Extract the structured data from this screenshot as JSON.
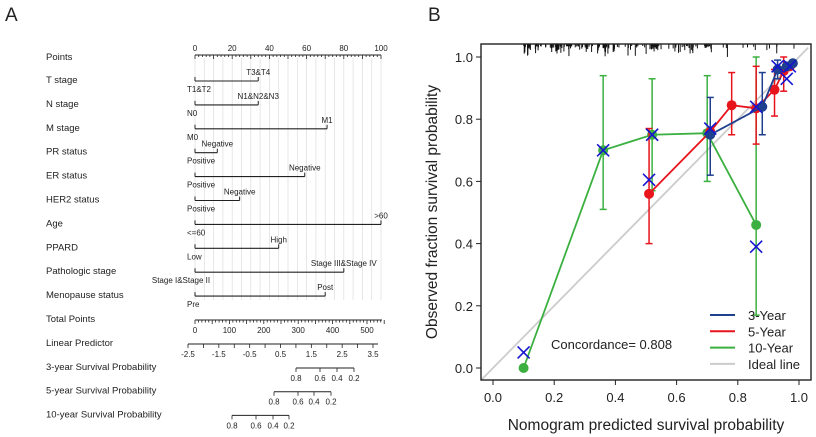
{
  "panel_a": {
    "letter": "A",
    "points_axis": {
      "label": "Points",
      "ticks": [
        "0",
        "20",
        "40",
        "60",
        "80",
        "100"
      ]
    },
    "variables": [
      {
        "label": "T stage",
        "levels": [
          {
            "label": "T1&T2",
            "points": 0,
            "pos": "below"
          },
          {
            "label": "T3&T4",
            "points": 34,
            "pos": "above"
          }
        ]
      },
      {
        "label": "N stage",
        "levels": [
          {
            "label": "N0",
            "points": 0,
            "pos": "below"
          },
          {
            "label": "N1&N2&N3",
            "points": 34,
            "pos": "above"
          }
        ]
      },
      {
        "label": "M stage",
        "levels": [
          {
            "label": "M0",
            "points": 0,
            "pos": "below"
          },
          {
            "label": "M1",
            "points": 71,
            "pos": "above"
          }
        ]
      },
      {
        "label": "PR status",
        "levels": [
          {
            "label": "Positive",
            "points": 0,
            "pos": "below"
          },
          {
            "label": "Negative",
            "points": 12,
            "pos": "above"
          }
        ]
      },
      {
        "label": "ER status",
        "levels": [
          {
            "label": "Positive",
            "points": 0,
            "pos": "below"
          },
          {
            "label": "Negative",
            "points": 59,
            "pos": "above"
          }
        ]
      },
      {
        "label": "HER2 status",
        "levels": [
          {
            "label": "Positive",
            "points": 0,
            "pos": "below"
          },
          {
            "label": "Negative",
            "points": 24,
            "pos": "above"
          }
        ]
      },
      {
        "label": "Age",
        "levels": [
          {
            "label": "<=60",
            "points": 0,
            "pos": "below"
          },
          {
            "label": ">60",
            "points": 100,
            "pos": "above"
          }
        ]
      },
      {
        "label": "PPARD",
        "levels": [
          {
            "label": "Low",
            "points": 0,
            "pos": "below"
          },
          {
            "label": "High",
            "points": 45,
            "pos": "above"
          }
        ]
      },
      {
        "label": "Pathologic stage",
        "levels": [
          {
            "label": "Stage I&Stage II",
            "points": 0,
            "pos": "below"
          },
          {
            "label": "Stage III&Stage IV",
            "points": 80,
            "pos": "above"
          }
        ]
      },
      {
        "label": "Menopause status",
        "levels": [
          {
            "label": "Pre",
            "points": 0,
            "pos": "below"
          },
          {
            "label": "Post",
            "points": 70,
            "pos": "above"
          }
        ]
      }
    ],
    "total_points": {
      "label": "Total Points",
      "ticks": [
        "0",
        "100",
        "200",
        "300",
        "400",
        "500"
      ]
    },
    "linear_predictor": {
      "label": "Linear Predictor",
      "ticks": [
        "-2.5",
        "-1.5",
        "-0.5",
        "0.5",
        "1.5",
        "2.5",
        "3.5"
      ]
    },
    "survival_scales": [
      {
        "label": "3-year Survival Probability",
        "ticks": [
          "0.8",
          "0.6",
          "0.4",
          "0.2"
        ]
      },
      {
        "label": "5-year Survival Probability",
        "ticks": [
          "0.8",
          "0.6",
          "0.4",
          "0.2"
        ]
      },
      {
        "label": "10-year Survival Probability",
        "ticks": [
          "0.8",
          "0.6",
          "0.4",
          "0.2"
        ]
      }
    ]
  },
  "chart_data": {
    "type": "line",
    "panel_letter": "B",
    "xlabel": "Nomogram predicted survival probability",
    "ylabel": "Observed fraction survival probability",
    "xlim": [
      -0.04,
      1.03
    ],
    "ylim": [
      -0.04,
      1.04
    ],
    "xticks": [
      "0.0",
      "0.2",
      "0.4",
      "0.6",
      "0.8",
      "1.0"
    ],
    "yticks": [
      "0.0",
      "0.2",
      "0.4",
      "0.6",
      "0.8",
      "1.0"
    ],
    "annotation": "Concordance= 0.808",
    "legend_position": "bottom-right",
    "series": [
      {
        "name": "3-Year",
        "color": "#1f3f8f",
        "points": [
          [
            0.71,
            0.75
          ],
          [
            0.88,
            0.84
          ],
          [
            0.93,
            0.96
          ],
          [
            0.96,
            0.97
          ],
          [
            0.98,
            0.98
          ]
        ],
        "errors": [
          [
            0.71,
            0.62,
            0.87
          ],
          [
            0.88,
            0.75,
            0.95
          ],
          [
            0.93,
            0.93,
            0.99
          ]
        ]
      },
      {
        "name": "5-Year",
        "color": "#e8141c",
        "points": [
          [
            0.51,
            0.56
          ],
          [
            0.71,
            0.76
          ],
          [
            0.78,
            0.845
          ],
          [
            0.86,
            0.835
          ],
          [
            0.92,
            0.895
          ],
          [
            0.95,
            0.955
          ],
          [
            0.97,
            0.97
          ]
        ],
        "errors": [
          [
            0.51,
            0.4,
            0.77
          ],
          [
            0.78,
            0.75,
            0.95
          ],
          [
            0.86,
            0.72,
            0.97
          ],
          [
            0.92,
            0.81,
            0.96
          ],
          [
            0.95,
            0.89,
            1.0
          ]
        ]
      },
      {
        "name": "10-Year",
        "color": "#3bb040",
        "points": [
          [
            0.1,
            0.0
          ],
          [
            0.36,
            0.7
          ],
          [
            0.52,
            0.75
          ],
          [
            0.7,
            0.755
          ],
          [
            0.86,
            0.46
          ]
        ],
        "errors": [
          [
            0.36,
            0.51,
            0.94
          ],
          [
            0.52,
            0.57,
            0.93
          ],
          [
            0.7,
            0.6,
            0.94
          ],
          [
            0.86,
            0.17,
            1.0
          ]
        ]
      },
      {
        "name": "Ideal line",
        "color": "#cccccc",
        "points": [
          [
            -0.04,
            -0.04
          ],
          [
            1.03,
            1.03
          ]
        ]
      }
    ],
    "corrected_markers": {
      "color": "#1515d0",
      "points": [
        [
          0.1,
          0.05
        ],
        [
          0.36,
          0.7
        ],
        [
          0.51,
          0.605
        ],
        [
          0.52,
          0.75
        ],
        [
          0.71,
          0.77
        ],
        [
          0.86,
          0.39
        ],
        [
          0.86,
          0.84
        ],
        [
          0.93,
          0.97
        ],
        [
          0.96,
          0.93
        ],
        [
          0.97,
          0.97
        ]
      ]
    }
  }
}
